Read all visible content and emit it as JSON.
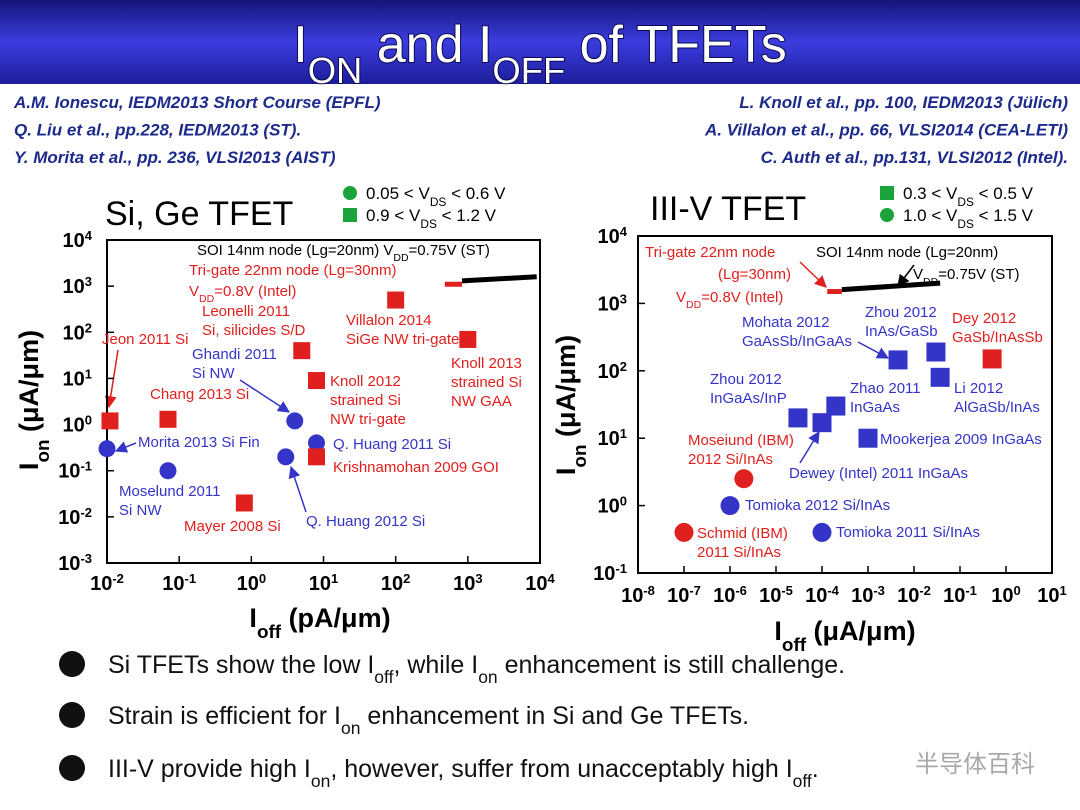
{
  "title": [
    "I",
    {
      "sub": "ON"
    },
    " and I",
    {
      "sub": "OFF"
    },
    " of TFETs"
  ],
  "references_left": [
    "A.M. Ionescu, IEDM2013 Short Course (EPFL)",
    "Q. Liu et al., pp.228, IEDM2013 (ST).",
    "Y. Morita et al., pp. 236, VLSI2013 (AIST)"
  ],
  "references_right": [
    "L. Knoll et al., pp. 100, IEDM2013 (Jülich)",
    "A. Villalon et al., pp. 66, VLSI2014 (CEA-LETI)",
    "C. Auth et al., pp.131, VLSI2012 (Intel)."
  ],
  "chart_data": [
    {
      "type": "scatter",
      "title": "Si, Ge TFET",
      "xlabel": [
        "I",
        {
          "sub": "off"
        },
        " (pA/μm)"
      ],
      "ylabel": [
        "I",
        {
          "sub": "on"
        },
        " (μA/μm)"
      ],
      "xscale": "log",
      "yscale": "log",
      "xlim": [
        0.01,
        10000
      ],
      "ylim": [
        0.001,
        10000
      ],
      "xticks": [
        {
          "value": 0.01,
          "label": [
            "10",
            {
              "sup": "-2"
            }
          ]
        },
        {
          "value": 0.1,
          "label": [
            "10",
            {
              "sup": "-1"
            }
          ]
        },
        {
          "value": 1,
          "label": [
            "10",
            {
              "sup": "0"
            }
          ]
        },
        {
          "value": 10,
          "label": [
            "10",
            {
              "sup": "1"
            }
          ]
        },
        {
          "value": 100,
          "label": [
            "10",
            {
              "sup": "2"
            }
          ]
        },
        {
          "value": 1000,
          "label": [
            "10",
            {
              "sup": "3"
            }
          ]
        },
        {
          "value": 10000,
          "label": [
            "10",
            {
              "sup": "4"
            }
          ]
        }
      ],
      "yticks": [
        {
          "value": 0.001,
          "label": [
            "10",
            {
              "sup": "-3"
            }
          ]
        },
        {
          "value": 0.01,
          "label": [
            "10",
            {
              "sup": "-2"
            }
          ]
        },
        {
          "value": 0.1,
          "label": [
            "10",
            {
              "sup": "-1"
            }
          ]
        },
        {
          "value": 1,
          "label": [
            "10",
            {
              "sup": "0"
            }
          ]
        },
        {
          "value": 10,
          "label": [
            "10",
            {
              "sup": "1"
            }
          ]
        },
        {
          "value": 100,
          "label": [
            "10",
            {
              "sup": "2"
            }
          ]
        },
        {
          "value": 1000,
          "label": [
            "10",
            {
              "sup": "3"
            }
          ]
        },
        {
          "value": 10000,
          "label": [
            "10",
            {
              "sup": "4"
            }
          ]
        }
      ],
      "series": [
        {
          "name": [
            "0.05 < V",
            {
              "sub": "DS"
            },
            " < 0.6 V"
          ],
          "marker": "circle",
          "legend_color": "#1aa33a",
          "colors": [
            "#3434c8",
            "#3434c8",
            "#3434c8",
            "#3434c8",
            "#3434c8"
          ],
          "x": [
            0.01,
            0.07,
            4,
            8,
            3
          ],
          "values": [
            0.3,
            0.1,
            1.2,
            0.4,
            0.2
          ],
          "labels": [
            [
              "Morita 2013 Si Fin"
            ],
            [
              "Moselund 2011",
              "Si NW"
            ],
            [
              "Ghandi 2011",
              "Si NW"
            ],
            [
              "Q. Huang 2011 Si"
            ],
            [
              "Q. Huang 2012 Si"
            ]
          ]
        },
        {
          "name": [
            "0.9 < V",
            {
              "sub": "DS"
            },
            " < 1.2 V"
          ],
          "marker": "square",
          "legend_color": "#1aa33a",
          "colors": [
            "#e0201e",
            "#e0201e",
            "#e0201e",
            "#e0201e",
            "#e0201e",
            "#e0201e",
            "#e0201e",
            "#e0201e"
          ],
          "x": [
            0.011,
            0.07,
            0.8,
            5,
            8,
            8,
            100,
            1000
          ],
          "values": [
            1.2,
            1.3,
            0.02,
            40,
            9,
            0.2,
            500,
            70
          ],
          "labels": [
            [
              "Jeon 2011 Si"
            ],
            [
              "Chang 2013 Si"
            ],
            [
              "Mayer 2008 Si"
            ],
            [
              "Leonelli 2011",
              "Si, silicides S/D"
            ],
            [
              "Knoll 2012",
              "strained Si",
              "NW tri-gate"
            ],
            [
              "Krishnamohan 2009 GOI"
            ],
            [
              "Villalon 2014",
              "SiGe NW tri-gate"
            ],
            [
              "Knoll 2013",
              "strained Si",
              "NW GAA"
            ]
          ]
        }
      ],
      "lines": [
        {
          "color": "#e0201e",
          "x": [
            480,
            830
          ],
          "values": [
            1100,
            1100
          ],
          "label": [
            "Tri-gate 22nm node (Lg=30nm)",
            [
              "V",
              {
                "sub": "DD"
              },
              "=0.8V (Intel)"
            ]
          ]
        },
        {
          "color": "#000000",
          "x": [
            830,
            9000
          ],
          "values": [
            1300,
            1600
          ],
          "label": [
            [
              "SOI 14nm node (Lg=20nm) V",
              {
                "sub": "DD"
              },
              "=0.75V (ST)"
            ]
          ]
        }
      ]
    },
    {
      "type": "scatter",
      "title": "III-V TFET",
      "xlabel": [
        "I",
        {
          "sub": "off"
        },
        " (μA/μm)"
      ],
      "ylabel": [
        "I",
        {
          "sub": "on"
        },
        " (μA/μm)"
      ],
      "xscale": "log",
      "yscale": "log",
      "xlim": [
        1e-08,
        10
      ],
      "ylim": [
        0.1,
        10000
      ],
      "xticks": [
        {
          "value": 1e-08,
          "label": [
            "10",
            {
              "sup": "-8"
            }
          ]
        },
        {
          "value": 1e-07,
          "label": [
            "10",
            {
              "sup": "-7"
            }
          ]
        },
        {
          "value": 1e-06,
          "label": [
            "10",
            {
              "sup": "-6"
            }
          ]
        },
        {
          "value": 1e-05,
          "label": [
            "10",
            {
              "sup": "-5"
            }
          ]
        },
        {
          "value": 0.0001,
          "label": [
            "10",
            {
              "sup": "-4"
            }
          ]
        },
        {
          "value": 0.001,
          "label": [
            "10",
            {
              "sup": "-3"
            }
          ]
        },
        {
          "value": 0.01,
          "label": [
            "10",
            {
              "sup": "-2"
            }
          ]
        },
        {
          "value": 0.1,
          "label": [
            "10",
            {
              "sup": "-1"
            }
          ]
        },
        {
          "value": 1,
          "label": [
            "10",
            {
              "sup": "0"
            }
          ]
        },
        {
          "value": 10,
          "label": [
            "10",
            {
              "sup": "1"
            }
          ]
        }
      ],
      "yticks": [
        {
          "value": 0.1,
          "label": [
            "10",
            {
              "sup": "-1"
            }
          ]
        },
        {
          "value": 1,
          "label": [
            "10",
            {
              "sup": "0"
            }
          ]
        },
        {
          "value": 10,
          "label": [
            "10",
            {
              "sup": "1"
            }
          ]
        },
        {
          "value": 100,
          "label": [
            "10",
            {
              "sup": "2"
            }
          ]
        },
        {
          "value": 1000,
          "label": [
            "10",
            {
              "sup": "3"
            }
          ]
        },
        {
          "value": 10000,
          "label": [
            "10",
            {
              "sup": "4"
            }
          ]
        }
      ],
      "series": [
        {
          "name": [
            "0.3 < V",
            {
              "sub": "DS"
            },
            " < 0.5 V"
          ],
          "marker": "square",
          "legend_color": "#1aa33a",
          "colors": [
            "#3434c8",
            "#3434c8",
            "#3434c8",
            "#e0201e",
            "#3434c8",
            "#3434c8",
            "#3434c8",
            "#3434c8"
          ],
          "x": [
            0.0045,
            0.03,
            0.037,
            0.5,
            3e-05,
            0.0002,
            0.0001,
            0.001
          ],
          "values": [
            145,
            190,
            80,
            150,
            20,
            30,
            17,
            10
          ],
          "labels": [
            [
              "Mohata 2012",
              "GaAsSb/InGaAs"
            ],
            [
              "Zhou 2012",
              "InAs/GaSb"
            ],
            [
              "Li 2012",
              "AlGaSb/InAs"
            ],
            [
              "Dey 2012",
              "GaSb/InAsSb"
            ],
            [
              "Zhou 2012",
              "InGaAs/InP"
            ],
            [
              "Zhao 2011",
              "InGaAs"
            ],
            [
              "Dewey (Intel) 2011 InGaAs"
            ],
            [
              "Mookerjea 2009 InGaAs"
            ]
          ]
        },
        {
          "name": [
            "1.0 < V",
            {
              "sub": "DS"
            },
            " < 1.5 V"
          ],
          "marker": "circle",
          "legend_color": "#1aa33a",
          "colors": [
            "#e0201e",
            "#3434c8",
            "#e0201e",
            "#3434c8"
          ],
          "x": [
            2e-06,
            1e-06,
            1e-07,
            0.0001
          ],
          "values": [
            2.5,
            1,
            0.4,
            0.4
          ],
          "labels": [
            [
              "Moseiund (IBM)",
              "2012 Si/InAs"
            ],
            [
              "Tomioka 2012 Si/InAs"
            ],
            [
              "Schmid (IBM)",
              "2011 Si/InAs"
            ],
            [
              "Tomioka 2011 Si/InAs"
            ]
          ]
        }
      ],
      "lines": [
        {
          "color": "#e0201e",
          "x": [
            0.00013,
            0.00027
          ],
          "values": [
            1500,
            1500
          ],
          "label": [
            "Tri-gate 22nm node",
            "(Lg=30nm)",
            [
              "V",
              {
                "sub": "DD"
              },
              "=0.8V (Intel)"
            ]
          ]
        },
        {
          "color": "#000000",
          "x": [
            0.00027,
            0.037
          ],
          "values": [
            1600,
            2000
          ],
          "label": [
            "SOI 14nm node (Lg=20nm)",
            [
              "V",
              {
                "sub": "DD"
              },
              "=0.75V (ST)"
            ]
          ]
        }
      ]
    }
  ],
  "bullets": [
    [
      "Si TFETs show the low I",
      {
        "sub": "off"
      },
      ", while I",
      {
        "sub": "on"
      },
      " enhancement is still challenge."
    ],
    [
      "Strain is efficient for I",
      {
        "sub": "on"
      },
      " enhancement in Si and Ge TFETs."
    ],
    [
      "III-V provide high I",
      {
        "sub": "on"
      },
      ", however, suffer from unacceptably high I",
      {
        "sub": "off"
      },
      "."
    ]
  ],
  "watermark": "半导体百科"
}
